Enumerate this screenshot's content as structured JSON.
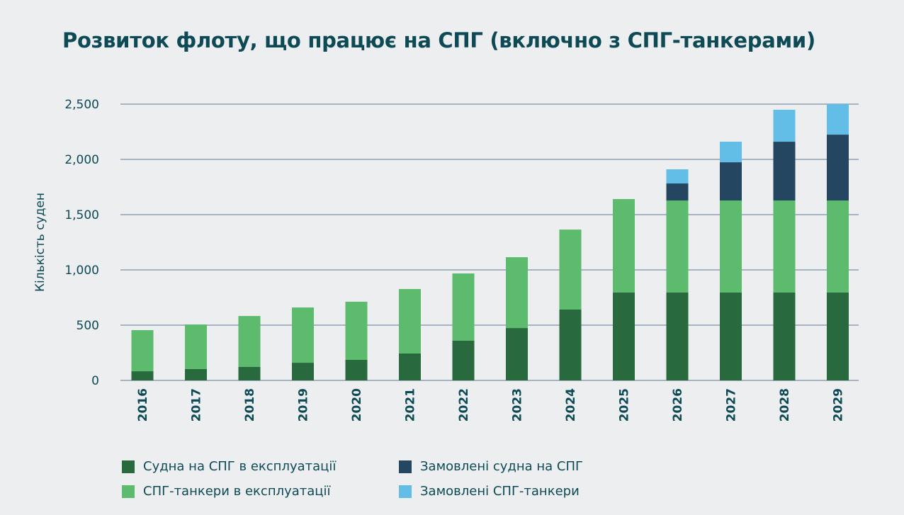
{
  "chart_data": {
    "type": "bar",
    "stacked": true,
    "title": "Розвиток флоту, що працює на СПГ (включно з СПГ-танкерами)",
    "ylabel": "Кількість суден",
    "xlabel": "",
    "ylim": [
      0,
      2500
    ],
    "yticks": [
      "0",
      "500",
      "1,000",
      "1,500",
      "2,000",
      "2,500"
    ],
    "ytick_values": [
      0,
      500,
      1000,
      1500,
      2000,
      2500
    ],
    "grid": true,
    "legend_placement": "bottom",
    "categories": [
      "2016",
      "2017",
      "2018",
      "2019",
      "2020",
      "2021",
      "2022",
      "2023",
      "2024",
      "2025",
      "2026",
      "2027",
      "2028",
      "2029"
    ],
    "series": [
      {
        "name": "Судна на СПГ в експлуатації",
        "color": "#28693e",
        "values": [
          83,
          103,
          122,
          160,
          186,
          244,
          359,
          474,
          641,
          795,
          795,
          795,
          795,
          795
        ]
      },
      {
        "name": "СПГ-танкери в експлуатації",
        "color": "#5dbb6e",
        "values": [
          372,
          403,
          461,
          500,
          526,
          583,
          609,
          641,
          724,
          846,
          833,
          833,
          833,
          833
        ]
      },
      {
        "name": "Замовлені судна на СПГ",
        "color": "#244660",
        "values": [
          0,
          0,
          0,
          0,
          0,
          0,
          0,
          0,
          0,
          0,
          154,
          346,
          532,
          596
        ]
      },
      {
        "name": "Замовлені СПГ-танкери",
        "color": "#62bde7",
        "values": [
          0,
          0,
          0,
          0,
          0,
          0,
          0,
          0,
          0,
          0,
          128,
          186,
          289,
          276
        ]
      }
    ],
    "legend_order": [
      0,
      2,
      1,
      3
    ]
  }
}
